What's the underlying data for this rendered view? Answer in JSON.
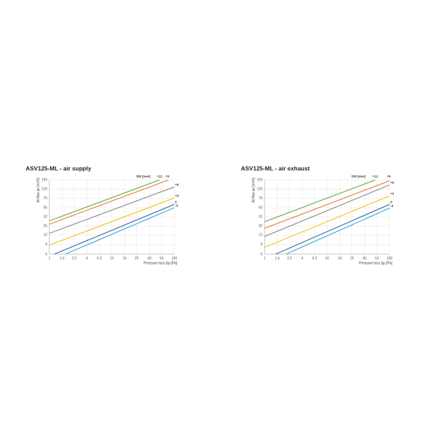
{
  "chart_data": [
    {
      "type": "line",
      "title": "ASV125-ML - air supply",
      "xlabel": "Pressure loss Δp [Pa]",
      "ylabel": "Airflow qv [m³/h]",
      "legend_title": "Slit [mm]",
      "xscale": "log",
      "yscale": "log",
      "grid": true,
      "xlim": [
        1,
        100
      ],
      "ylim": [
        5,
        199
      ],
      "xticks": [
        1,
        1.6,
        2.5,
        4,
        6.3,
        10,
        16,
        25,
        40,
        63,
        100
      ],
      "yticks": [
        5,
        8,
        13,
        20,
        32,
        50,
        79,
        126,
        199
      ],
      "series": [
        {
          "name": "+12",
          "color": "#6ab04c",
          "x": [
            1,
            58
          ],
          "values": [
            26,
            198
          ]
        },
        {
          "name": "+9",
          "color": "#f07f3c",
          "x": [
            1,
            80
          ],
          "values": [
            22,
            197
          ]
        },
        {
          "name": "+6",
          "color": "#8c8c8c",
          "x": [
            1,
            100
          ],
          "values": [
            14,
            140
          ]
        },
        {
          "name": "+3",
          "color": "#f5c518",
          "x": [
            1,
            100
          ],
          "values": [
            7.8,
            81
          ]
        },
        {
          "name": "0",
          "color": "#3a6ea5",
          "x": [
            1.2,
            100
          ],
          "values": [
            5,
            59
          ]
        },
        {
          "name": "-3",
          "color": "#3fa9e0",
          "x": [
            1.8,
            100
          ],
          "values": [
            5,
            50
          ]
        }
      ]
    },
    {
      "type": "line",
      "title": "ASV125-ML - air exhaust",
      "xlabel": "Pressure loss Δp [Pa]",
      "ylabel": "Airflow qv [m³/h]",
      "legend_title": "Slit [mm]",
      "xscale": "log",
      "yscale": "log",
      "grid": true,
      "xlim": [
        1,
        100
      ],
      "ylim": [
        5,
        199
      ],
      "xticks": [
        1,
        1.6,
        2.5,
        4,
        6.3,
        10,
        16,
        25,
        40,
        63,
        100
      ],
      "yticks": [
        5,
        8,
        13,
        20,
        32,
        50,
        79,
        126,
        199
      ],
      "series": [
        {
          "name": "+12",
          "color": "#6ab04c",
          "x": [
            1,
            59
          ],
          "values": [
            25,
            198
          ]
        },
        {
          "name": "+9",
          "color": "#f07f3c",
          "x": [
            1,
            100
          ],
          "values": [
            18,
            190
          ]
        },
        {
          "name": "+6",
          "color": "#8c8c8c",
          "x": [
            1,
            100
          ],
          "values": [
            12,
            155
          ]
        },
        {
          "name": "+3",
          "color": "#f5c518",
          "x": [
            1,
            100
          ],
          "values": [
            7,
            90
          ]
        },
        {
          "name": "0",
          "color": "#3a6ea5",
          "x": [
            1.5,
            100
          ],
          "values": [
            5,
            59
          ]
        },
        {
          "name": "-3",
          "color": "#3fa9e0",
          "x": [
            2.2,
            100
          ],
          "values": [
            5,
            49
          ]
        }
      ]
    }
  ]
}
